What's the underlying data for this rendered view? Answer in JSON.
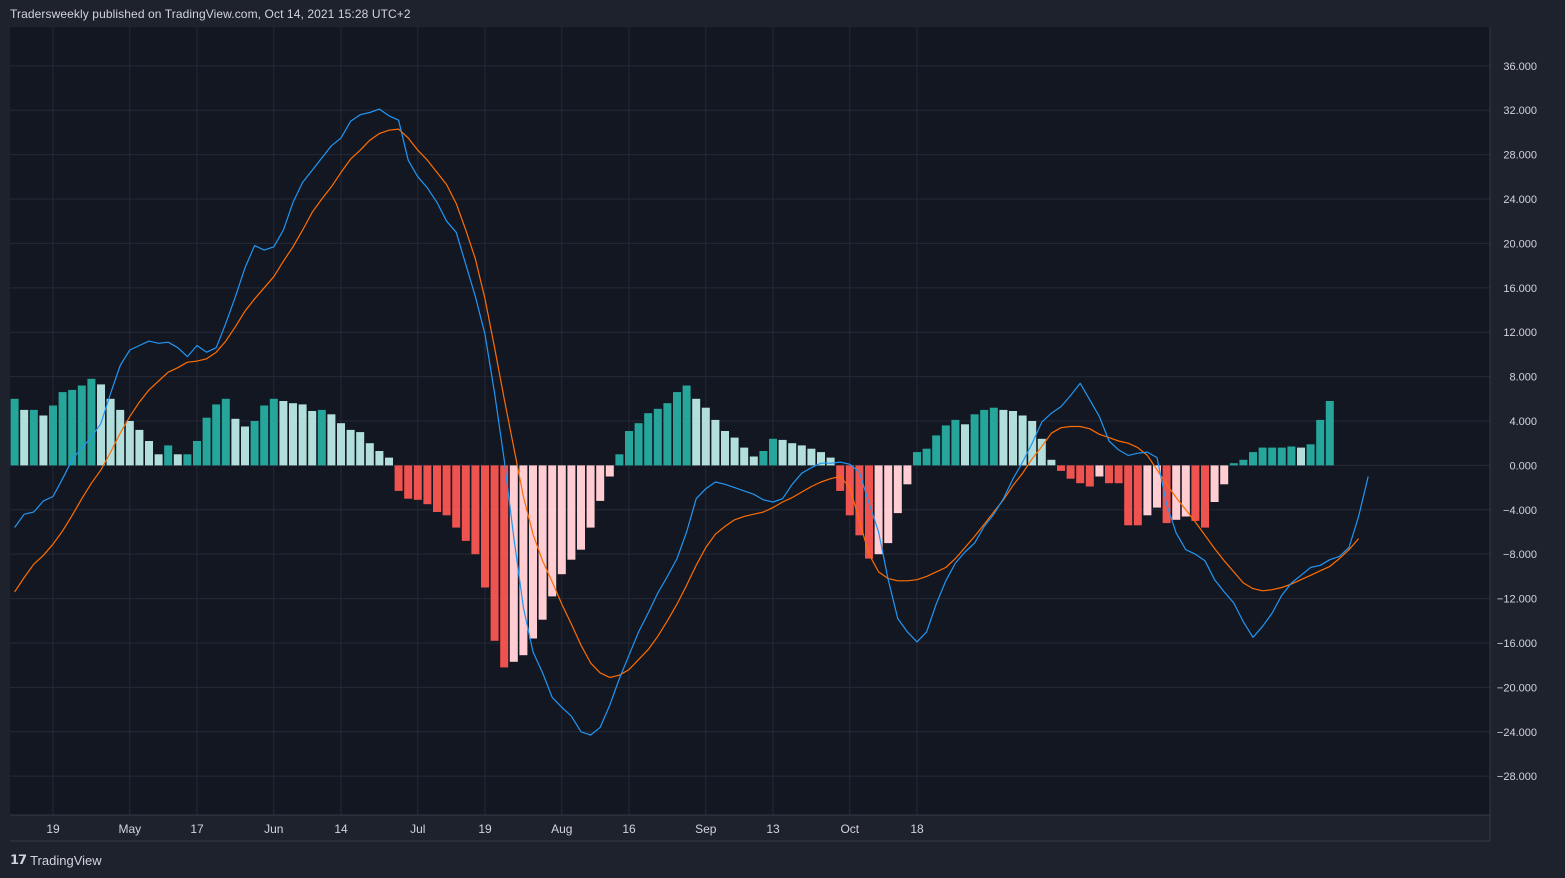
{
  "header": {
    "text": "Tradersweekly published on TradingView.com, Oct 14, 2021 15:28 UTC+2"
  },
  "footer": {
    "logo": "𝟭𝟳",
    "brand": "TradingView"
  },
  "colors": {
    "background": "#131722",
    "grid": "#262a36",
    "macd": "#2196f3",
    "signal": "#ff6d00",
    "hist_pos_up": "#26a69a",
    "hist_pos_down": "#b2dfdb",
    "hist_neg_down": "#ef5350",
    "hist_neg_up": "#ffcdd2"
  },
  "chart_data": {
    "type": "bar",
    "ylim": [
      -31.5,
      39.5
    ],
    "y_ticks": [
      "36.000",
      "32.000",
      "28.000",
      "24.000",
      "20.000",
      "16.000",
      "12.000",
      "8.000",
      "4.000",
      "0.000",
      "−4.000",
      "−8.000",
      "−12.000",
      "−16.000",
      "−20.000",
      "−24.000",
      "−28.000"
    ],
    "y_tick_values": [
      36,
      32,
      28,
      24,
      20,
      16,
      12,
      8,
      4,
      0,
      -4,
      -8,
      -12,
      -16,
      -20,
      -24,
      -28
    ],
    "x_ticks": [
      "19",
      "May",
      "17",
      "Jun",
      "14",
      "Jul",
      "19",
      "Aug",
      "16",
      "Sep",
      "13",
      "Oct",
      "18"
    ],
    "x_tick_index": [
      4,
      12,
      19,
      27,
      34,
      42,
      49,
      57,
      64,
      72,
      79,
      87,
      94
    ],
    "histogram": [
      6.0,
      5.0,
      5.0,
      4.5,
      5.4,
      6.6,
      6.8,
      7.2,
      7.8,
      7.3,
      6.0,
      5.0,
      4.0,
      3.2,
      2.2,
      1.0,
      1.8,
      1.0,
      1.0,
      2.2,
      4.3,
      5.5,
      6.0,
      4.2,
      3.5,
      4.0,
      5.4,
      6.0,
      5.8,
      5.6,
      5.5,
      4.9,
      5.0,
      4.6,
      3.8,
      3.2,
      3.0,
      2.0,
      1.3,
      0.7,
      -2.3,
      -3.0,
      -3.1,
      -3.5,
      -4.2,
      -4.5,
      -5.6,
      -6.8,
      -8.0,
      -11.0,
      -15.8,
      -18.2,
      -17.7,
      -17.1,
      -15.6,
      -13.9,
      -11.8,
      -9.8,
      -8.5,
      -7.6,
      -5.6,
      -3.2,
      -1.0,
      1.0,
      3.1,
      3.8,
      4.7,
      5.1,
      5.6,
      6.6,
      7.2,
      6.0,
      5.2,
      4.1,
      3.1,
      2.5,
      1.6,
      0.8,
      1.3,
      2.4,
      2.3,
      2.0,
      1.8,
      1.5,
      1.2,
      0.7,
      -2.3,
      -4.5,
      -6.3,
      -8.4,
      -8.0,
      -7.0,
      -4.3,
      -1.7,
      1.2,
      1.5,
      2.7,
      3.6,
      4.1,
      3.7,
      4.6,
      5.0,
      5.2,
      5.0,
      4.9,
      4.5,
      4.0,
      2.4,
      0.5,
      -0.5,
      -1.2,
      -1.6,
      -1.9,
      -1.0,
      -1.6,
      -1.6,
      -5.4,
      -5.4,
      -4.5,
      -3.8,
      -5.2,
      -4.9,
      -4.6,
      -5.0,
      -5.6,
      -3.3,
      -1.7,
      0.2,
      0.5,
      1.2,
      1.6,
      1.6,
      1.6,
      1.7,
      1.6,
      1.9,
      4.1,
      5.8
    ],
    "macd": [
      -5.6,
      -4.4,
      -4.2,
      -3.2,
      -2.8,
      -1.2,
      0.5,
      1.6,
      2.5,
      3.8,
      6.5,
      9.0,
      10.4,
      10.8,
      11.2,
      11.0,
      11.1,
      10.6,
      9.8,
      10.8,
      10.2,
      10.6,
      12.8,
      15.2,
      17.8,
      19.8,
      19.4,
      19.7,
      21.2,
      23.7,
      25.5,
      26.6,
      27.7,
      28.8,
      29.5,
      31.0,
      31.6,
      31.8,
      32.1,
      31.5,
      31.1,
      27.5,
      26.0,
      25.0,
      23.7,
      22.0,
      21.0,
      18.1,
      15.2,
      11.8,
      6.5,
      0.5,
      -6.5,
      -12.8,
      -16.8,
      -18.7,
      -20.9,
      -21.8,
      -22.6,
      -24.0,
      -24.3,
      -23.6,
      -21.6,
      -19.2,
      -17.1,
      -15.0,
      -13.3,
      -11.5,
      -10.0,
      -8.4,
      -6.0,
      -3.0,
      -2.1,
      -1.5,
      -1.7,
      -2.0,
      -2.3,
      -2.6,
      -3.1,
      -3.3,
      -3.0,
      -1.7,
      -0.7,
      -0.2,
      0.2,
      0.2,
      0.3,
      0.1,
      -0.6,
      -3.4,
      -6.0,
      -10.3,
      -13.8,
      -15.0,
      -15.9,
      -15.0,
      -12.5,
      -10.4,
      -8.8,
      -7.8,
      -7.0,
      -5.5,
      -4.4,
      -3.0,
      -1.2,
      0.3,
      2.0,
      3.9,
      4.7,
      5.3,
      6.3,
      7.4,
      5.9,
      4.4,
      2.2,
      1.4,
      0.9,
      1.1,
      1.2,
      0.7,
      -3.5,
      -6.1,
      -7.6,
      -8.0,
      -8.6,
      -10.3,
      -11.4,
      -12.4,
      -14.1,
      -15.5,
      -14.5,
      -13.3,
      -11.7,
      -10.6,
      -9.9,
      -9.2,
      -9.0,
      -8.5,
      -8.2,
      -7.4,
      -4.6,
      -1.0
    ],
    "signal": [
      -11.4,
      -10.1,
      -8.9,
      -8.1,
      -7.1,
      -5.9,
      -4.5,
      -3.0,
      -1.6,
      -0.4,
      1.2,
      2.9,
      4.4,
      5.7,
      6.8,
      7.6,
      8.4,
      8.8,
      9.3,
      9.4,
      9.6,
      10.2,
      11.2,
      12.5,
      13.9,
      15.0,
      16.0,
      17.0,
      18.4,
      19.7,
      21.2,
      22.8,
      24.0,
      25.1,
      26.4,
      27.6,
      28.4,
      29.3,
      29.9,
      30.2,
      30.3,
      29.5,
      28.4,
      27.5,
      26.4,
      25.3,
      23.6,
      21.2,
      18.6,
      15.0,
      10.6,
      6.0,
      1.6,
      -2.8,
      -6.2,
      -8.6,
      -10.5,
      -12.5,
      -14.3,
      -16.2,
      -17.8,
      -18.7,
      -19.1,
      -18.9,
      -18.4,
      -17.5,
      -16.6,
      -15.4,
      -14.0,
      -12.5,
      -10.8,
      -9.0,
      -7.4,
      -6.2,
      -5.5,
      -4.9,
      -4.6,
      -4.4,
      -4.2,
      -3.8,
      -3.3,
      -2.9,
      -2.4,
      -1.9,
      -1.5,
      -1.2,
      -1.0,
      -2.0,
      -5.0,
      -8.0,
      -9.6,
      -10.2,
      -10.4,
      -10.4,
      -10.3,
      -10.0,
      -9.6,
      -9.2,
      -8.4,
      -7.4,
      -6.4,
      -5.3,
      -4.2,
      -3.1,
      -1.8,
      -0.7,
      0.6,
      1.7,
      2.9,
      3.4,
      3.5,
      3.5,
      3.3,
      2.8,
      2.5,
      2.2,
      2.0,
      1.6,
      0.9,
      -0.4,
      -1.7,
      -2.9,
      -4.0,
      -5.1,
      -6.3,
      -7.5,
      -8.6,
      -9.6,
      -10.6,
      -11.1,
      -11.3,
      -11.2,
      -11.0,
      -10.7,
      -10.3,
      -9.9,
      -9.5,
      -9.1,
      -8.4,
      -7.6,
      -6.6
    ]
  }
}
